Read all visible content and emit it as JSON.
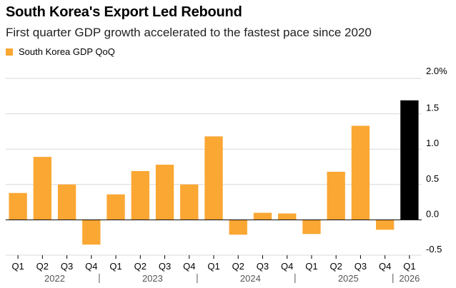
{
  "header": {
    "title": "South Korea's Export Led Rebound",
    "subtitle": "First quarter GDP growth accelerated to the fastest pace since 2020"
  },
  "legend": {
    "label": "South Korea GDP QoQ"
  },
  "colors": {
    "bar": "#FBA733",
    "highlight": "#000000",
    "grid": "#d8d8d8",
    "zero": "#000000"
  },
  "chart_data": {
    "type": "bar",
    "categories": [
      "Q1",
      "Q2",
      "Q3",
      "Q4",
      "Q1",
      "Q2",
      "Q3",
      "Q4",
      "Q1",
      "Q2",
      "Q3",
      "Q4",
      "Q1",
      "Q2",
      "Q3",
      "Q4",
      "Q1"
    ],
    "series": [
      {
        "name": "South Korea GDP QoQ",
        "values": [
          0.38,
          0.89,
          0.5,
          -0.35,
          0.36,
          0.69,
          0.78,
          0.5,
          1.18,
          -0.21,
          0.1,
          0.09,
          -0.2,
          0.68,
          1.33,
          -0.14,
          1.69
        ]
      }
    ],
    "highlight_index": 16,
    "year_labels": [
      {
        "label": "2022",
        "span": [
          0,
          3
        ]
      },
      {
        "label": "2023",
        "span": [
          4,
          7
        ]
      },
      {
        "label": "2024",
        "span": [
          8,
          11
        ]
      },
      {
        "label": "2025",
        "span": [
          12,
          15
        ]
      },
      {
        "label": "2026",
        "span": [
          16,
          16
        ]
      }
    ],
    "y_ticks": [
      {
        "value": 2.0,
        "label": "2.0%"
      },
      {
        "value": 1.5,
        "label": "1.5"
      },
      {
        "value": 1.0,
        "label": "1.0"
      },
      {
        "value": 0.5,
        "label": "0.5"
      },
      {
        "value": 0.0,
        "label": "0.0"
      },
      {
        "value": -0.5,
        "label": "-0.5"
      }
    ],
    "ylim": [
      -0.5,
      2.0
    ],
    "xlabel": "",
    "ylabel": "",
    "grid": true,
    "legend_position": "top-left"
  }
}
